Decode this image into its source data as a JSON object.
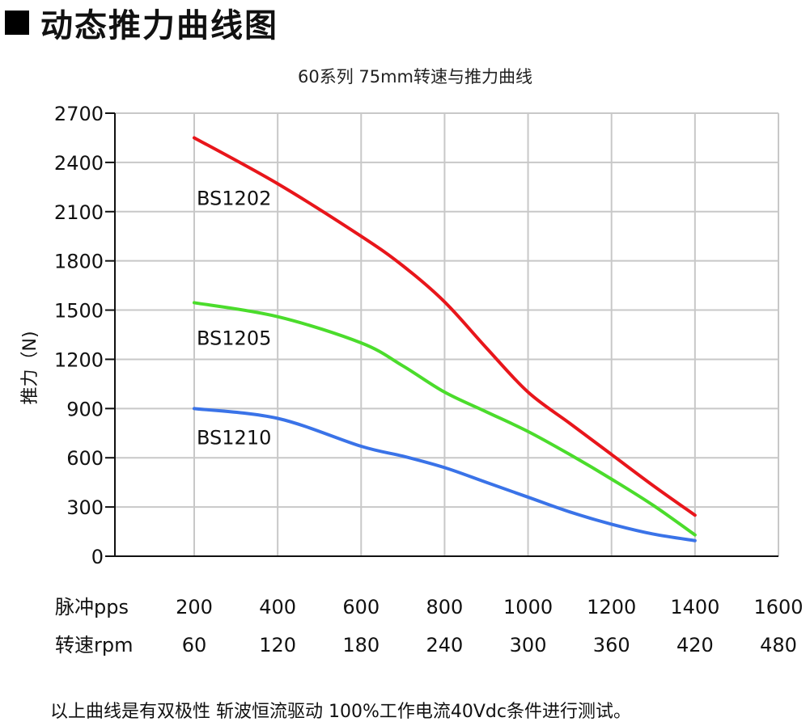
{
  "heading": {
    "icon": "black-square-icon",
    "text": "动态推力曲线图"
  },
  "footnote": "以上曲线是有双极性 斩波恒流驱动 100%工作电流40Vdc条件进行测试。",
  "chart_data": {
    "type": "line",
    "title": "60系列 75mm转速与推力曲线",
    "ylabel": "推力（N)",
    "ylim": [
      0,
      2700
    ],
    "yticks": [
      0,
      300,
      600,
      900,
      1200,
      1500,
      1800,
      2100,
      2400,
      2700
    ],
    "xlim": [
      200,
      1600
    ],
    "grid": true,
    "x_rows": [
      {
        "label": "脉冲pps",
        "ticks": [
          "200",
          "400",
          "600",
          "800",
          "1000",
          "1200",
          "1400",
          "1600"
        ]
      },
      {
        "label": "转速rpm",
        "ticks": [
          "60",
          "120",
          "180",
          "240",
          "300",
          "360",
          "420",
          "480"
        ]
      }
    ],
    "x_positions": [
      200,
      400,
      600,
      800,
      1000,
      1200,
      1400,
      1600
    ],
    "series": [
      {
        "name": "BS1202",
        "color": "#e8161b",
        "x": [
          200,
          400,
          600,
          700,
          800,
          900,
          1000,
          1100,
          1200,
          1300,
          1400
        ],
        "y": [
          2550,
          2270,
          1950,
          1770,
          1550,
          1270,
          1000,
          810,
          620,
          430,
          250
        ]
      },
      {
        "name": "BS1205",
        "color": "#4bdc2c",
        "x": [
          200,
          400,
          600,
          700,
          800,
          900,
          1000,
          1100,
          1200,
          1300,
          1400
        ],
        "y": [
          1545,
          1460,
          1300,
          1160,
          1000,
          880,
          760,
          620,
          470,
          310,
          130
        ]
      },
      {
        "name": "BS1210",
        "color": "#3a73e8",
        "x": [
          200,
          400,
          600,
          700,
          800,
          900,
          1000,
          1100,
          1200,
          1300,
          1400
        ],
        "y": [
          900,
          840,
          670,
          610,
          540,
          450,
          360,
          270,
          195,
          135,
          95
        ]
      }
    ]
  }
}
